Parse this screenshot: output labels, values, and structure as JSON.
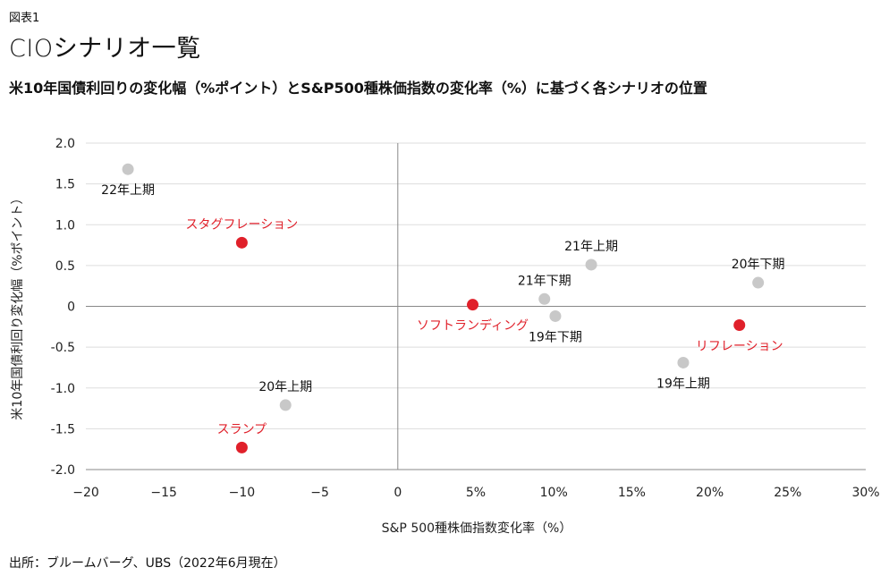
{
  "header": {
    "figure_label": "図表1",
    "title": "CIOシナリオ一覧",
    "subtitle": "米10年国債利回りの変化幅（%ポイント）とS&P500種株価指数の変化率（%）に基づく各シナリオの位置"
  },
  "source": "出所：ブルームバーグ、UBS（2022年6月現在）",
  "colors": {
    "scenario": "#e0202a",
    "period": "#c8c8c8",
    "axis": "#888888",
    "grid": "#dddddd",
    "label_scenario": "#e0202a",
    "label_period": "#111111"
  },
  "chart_data": {
    "type": "scatter",
    "xlabel": "S&P 500種株価指数変化率（%）",
    "ylabel": "米10年国債利回り変化幅（%ポイント）",
    "xlim": [
      -20,
      30
    ],
    "ylim": [
      -2.0,
      2.0
    ],
    "x_ticks": [
      -20,
      -15,
      -10,
      -5,
      0,
      5,
      10,
      15,
      20,
      25,
      30
    ],
    "x_tick_labels": [
      "−20",
      "−15",
      "−10",
      "−5",
      "0",
      "5%",
      "10%",
      "15%",
      "20%",
      "25%",
      "30%"
    ],
    "y_ticks": [
      2.0,
      1.5,
      1.0,
      0.5,
      0,
      -0.5,
      -1.0,
      -1.5,
      -2.0
    ],
    "y_tick_labels": [
      "2.0",
      "1.5",
      "1.0",
      "0.5",
      "0",
      "-0.5",
      "-1.0",
      "-1.5",
      "-2.0"
    ],
    "grid": "horizontal",
    "series": [
      {
        "kind": "scenario",
        "points": [
          {
            "label": "スタグフレーション",
            "x": -10.0,
            "y": 0.78,
            "label_pos": "above"
          },
          {
            "label": "ソフトランディング",
            "x": 4.8,
            "y": 0.02,
            "label_pos": "below"
          },
          {
            "label": "リフレーション",
            "x": 21.9,
            "y": -0.23,
            "label_pos": "below"
          },
          {
            "label": "スランプ",
            "x": -10.0,
            "y": -1.73,
            "label_pos": "above"
          }
        ]
      },
      {
        "kind": "period",
        "points": [
          {
            "label": "22年上期",
            "x": -17.3,
            "y": 1.68,
            "label_pos": "below"
          },
          {
            "label": "21年上期",
            "x": 12.4,
            "y": 0.51,
            "label_pos": "above"
          },
          {
            "label": "21年下期",
            "x": 9.4,
            "y": 0.09,
            "label_pos": "above"
          },
          {
            "label": "20年下期",
            "x": 23.1,
            "y": 0.29,
            "label_pos": "above"
          },
          {
            "label": "19年下期",
            "x": 10.1,
            "y": -0.12,
            "label_pos": "below"
          },
          {
            "label": "19年上期",
            "x": 18.3,
            "y": -0.69,
            "label_pos": "below"
          },
          {
            "label": "20年上期",
            "x": -7.2,
            "y": -1.21,
            "label_pos": "above"
          }
        ]
      }
    ]
  }
}
